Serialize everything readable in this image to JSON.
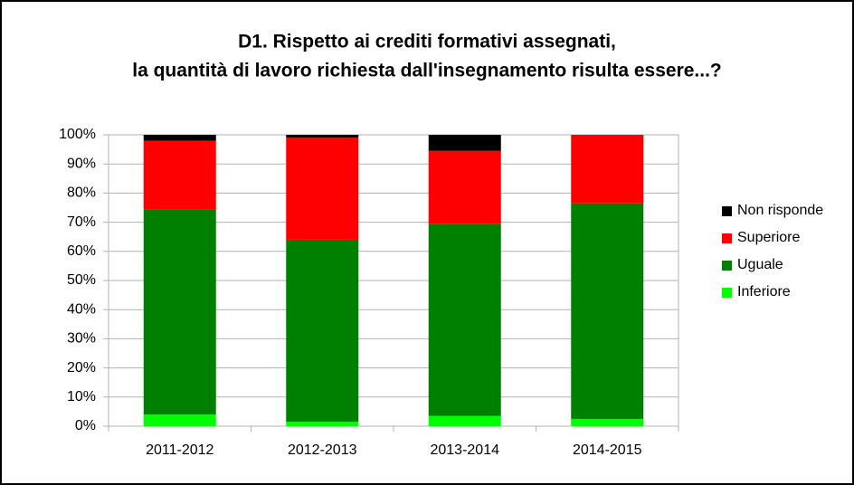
{
  "chart_data": {
    "type": "stacked_bar",
    "title": [
      "D1. Rispetto ai crediti formativi assegnati,",
      "la quantità di lavoro richiesta dall'insegnamento risulta essere...?"
    ],
    "categories": [
      "2011-2012",
      "2012-2013",
      "2013-2014",
      "2014-2015"
    ],
    "series": [
      {
        "name": "Inferiore",
        "color": "#00ff00",
        "values": [
          4,
          1.5,
          3.5,
          2.5
        ]
      },
      {
        "name": "Uguale",
        "color": "#008000",
        "values": [
          70.5,
          62.5,
          66,
          74
        ]
      },
      {
        "name": "Superiore",
        "color": "#ff0000",
        "values": [
          23.5,
          35,
          25,
          23.5
        ]
      },
      {
        "name": "Non risponde",
        "color": "#000000",
        "values": [
          2,
          1,
          5.5,
          0
        ]
      }
    ],
    "ylim": [
      0,
      100
    ],
    "yticks": [
      {
        "value": 0,
        "label": "0%"
      },
      {
        "value": 10,
        "label": "10%"
      },
      {
        "value": 20,
        "label": "20%"
      },
      {
        "value": 30,
        "label": "30%"
      },
      {
        "value": 40,
        "label": "40%"
      },
      {
        "value": 50,
        "label": "50%"
      },
      {
        "value": 60,
        "label": "60%"
      },
      {
        "value": 70,
        "label": "70%"
      },
      {
        "value": 80,
        "label": "80%"
      },
      {
        "value": 90,
        "label": "90%"
      },
      {
        "value": 100,
        "label": "100%"
      }
    ],
    "grid": true,
    "legend": "right"
  }
}
